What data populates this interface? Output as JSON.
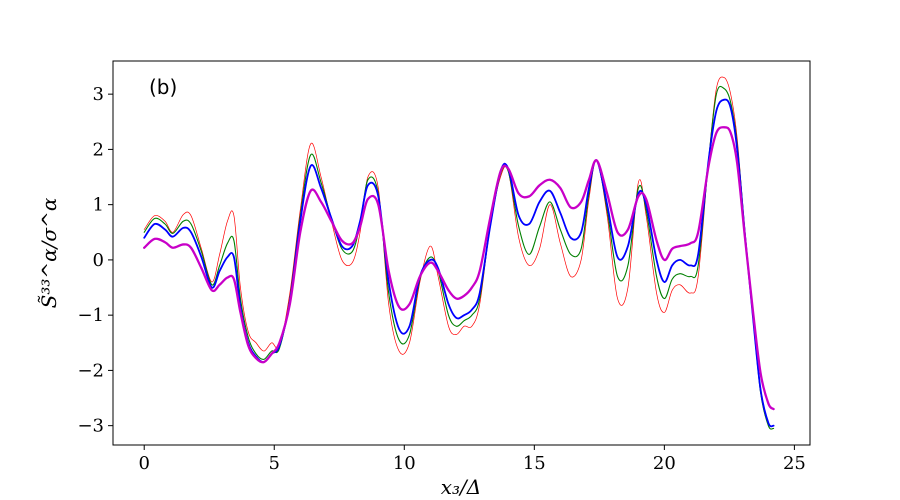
{
  "panel_label": "(b)",
  "chart_data": {
    "type": "line",
    "title": "",
    "xlabel": "x₃/Δ",
    "ylabel": "S̃³³^α/σ^α",
    "xlim": [
      -1.2,
      25.6
    ],
    "ylim": [
      -3.35,
      3.6
    ],
    "xticks": [
      0,
      5,
      10,
      15,
      20,
      25
    ],
    "yticks": [
      -3,
      -2,
      -1,
      0,
      1,
      2,
      3
    ],
    "xtick_labels": [
      "0",
      "5",
      "10",
      "15",
      "20",
      "25"
    ],
    "ytick_labels": [
      "−3",
      "−2",
      "−1",
      "0",
      "1",
      "2",
      "3"
    ],
    "grid": false,
    "series": [
      {
        "color": "#ff0000",
        "width": 0.7,
        "x": [
          0,
          0.4,
          0.8,
          1.1,
          1.5,
          1.8,
          2.2,
          2.6,
          2.9,
          3.2,
          3.45,
          3.7,
          4.0,
          4.3,
          4.6,
          4.9,
          5.2,
          5.6,
          6.0,
          6.4,
          6.8,
          7.2,
          7.6,
          8.0,
          8.3,
          8.6,
          9.0,
          9.4,
          9.8,
          10.2,
          10.6,
          11.0,
          11.3,
          11.7,
          12.0,
          12.3,
          12.6,
          12.9,
          13.3,
          13.7,
          14.0,
          14.4,
          14.8,
          15.2,
          15.6,
          16.0,
          16.4,
          16.8,
          17.1,
          17.4,
          17.8,
          18.2,
          18.6,
          19.0,
          19.3,
          19.7,
          20.0,
          20.3,
          20.6,
          21.0,
          21.3,
          21.7,
          22.0,
          22.3,
          22.55,
          22.8,
          23.1,
          23.4,
          23.7,
          24.0,
          24.2
        ],
        "y": [
          0.55,
          0.8,
          0.7,
          0.5,
          0.82,
          0.8,
          0.2,
          -0.4,
          0.1,
          0.7,
          0.8,
          -0.5,
          -1.3,
          -1.5,
          -1.65,
          -1.5,
          -1.55,
          -0.6,
          0.9,
          2.1,
          1.5,
          0.7,
          0.0,
          -0.05,
          0.5,
          1.5,
          1.3,
          -0.8,
          -1.65,
          -1.5,
          -0.4,
          0.25,
          -0.3,
          -1.2,
          -1.35,
          -1.2,
          -1.2,
          -0.8,
          0.6,
          1.5,
          1.6,
          0.4,
          -0.1,
          0.2,
          1.0,
          0.3,
          -0.3,
          0.0,
          1.1,
          1.8,
          0.8,
          -0.7,
          -0.5,
          1.4,
          0.8,
          -0.6,
          -0.95,
          -0.55,
          -0.45,
          -0.6,
          -0.3,
          1.8,
          3.1,
          3.3,
          3.0,
          2.2,
          0.5,
          -1.0,
          -2.4,
          -3.0,
          -3.05
        ]
      },
      {
        "color": "#008000",
        "width": 1.1,
        "x": [
          0,
          0.4,
          0.8,
          1.1,
          1.5,
          1.8,
          2.2,
          2.6,
          2.9,
          3.2,
          3.45,
          3.7,
          4.0,
          4.3,
          4.6,
          4.9,
          5.2,
          5.6,
          6.0,
          6.4,
          6.8,
          7.2,
          7.6,
          8.0,
          8.3,
          8.6,
          9.0,
          9.4,
          9.8,
          10.2,
          10.6,
          11.0,
          11.3,
          11.7,
          12.0,
          12.3,
          12.6,
          12.9,
          13.3,
          13.7,
          14.0,
          14.4,
          14.8,
          15.2,
          15.6,
          16.0,
          16.4,
          16.8,
          17.1,
          17.4,
          17.8,
          18.2,
          18.6,
          19.0,
          19.3,
          19.7,
          20.0,
          20.3,
          20.6,
          21.0,
          21.3,
          21.7,
          22.0,
          22.3,
          22.55,
          22.8,
          23.1,
          23.4,
          23.7,
          24.0,
          24.2
        ],
        "y": [
          0.5,
          0.75,
          0.65,
          0.48,
          0.7,
          0.65,
          0.15,
          -0.45,
          -0.1,
          0.3,
          0.35,
          -0.7,
          -1.4,
          -1.7,
          -1.8,
          -1.65,
          -1.6,
          -0.7,
          0.8,
          1.9,
          1.4,
          0.75,
          0.2,
          0.15,
          0.65,
          1.45,
          1.2,
          -0.6,
          -1.45,
          -1.35,
          -0.35,
          0.05,
          -0.2,
          -1.0,
          -1.2,
          -1.1,
          -1.0,
          -0.7,
          0.6,
          1.55,
          1.6,
          0.6,
          0.1,
          0.6,
          1.05,
          0.55,
          0.1,
          0.2,
          1.2,
          1.8,
          0.9,
          -0.3,
          -0.1,
          1.3,
          0.9,
          -0.3,
          -0.7,
          -0.35,
          -0.25,
          -0.3,
          -0.1,
          1.8,
          3.0,
          3.1,
          2.85,
          2.1,
          0.5,
          -1.0,
          -2.4,
          -3.0,
          -3.05
        ]
      },
      {
        "color": "#0000ff",
        "width": 1.8,
        "x": [
          0,
          0.4,
          0.8,
          1.1,
          1.5,
          1.8,
          2.2,
          2.6,
          2.9,
          3.2,
          3.45,
          3.7,
          4.0,
          4.3,
          4.6,
          4.9,
          5.2,
          5.6,
          6.0,
          6.4,
          6.8,
          7.2,
          7.6,
          8.0,
          8.3,
          8.6,
          9.0,
          9.4,
          9.8,
          10.2,
          10.6,
          11.0,
          11.3,
          11.7,
          12.0,
          12.3,
          12.6,
          12.9,
          13.3,
          13.7,
          14.0,
          14.4,
          14.8,
          15.2,
          15.6,
          16.0,
          16.4,
          16.8,
          17.1,
          17.4,
          17.8,
          18.2,
          18.6,
          19.0,
          19.3,
          19.7,
          20.0,
          20.3,
          20.6,
          21.0,
          21.3,
          21.7,
          22.0,
          22.3,
          22.55,
          22.8,
          23.1,
          23.4,
          23.7,
          24.0,
          24.2
        ],
        "y": [
          0.4,
          0.65,
          0.55,
          0.42,
          0.58,
          0.5,
          0.05,
          -0.5,
          -0.2,
          0.05,
          0.05,
          -0.85,
          -1.5,
          -1.75,
          -1.85,
          -1.7,
          -1.55,
          -0.75,
          0.7,
          1.7,
          1.3,
          0.75,
          0.25,
          0.25,
          0.7,
          1.35,
          1.15,
          -0.4,
          -1.25,
          -1.2,
          -0.3,
          0.0,
          -0.15,
          -0.8,
          -1.05,
          -1.0,
          -0.9,
          -0.6,
          0.6,
          1.6,
          1.65,
          0.8,
          0.65,
          1.05,
          1.25,
          0.85,
          0.4,
          0.5,
          1.3,
          1.8,
          1.0,
          0.05,
          0.25,
          1.2,
          1.0,
          0.0,
          -0.4,
          -0.1,
          0.0,
          -0.1,
          0.1,
          1.8,
          2.7,
          2.9,
          2.75,
          2.0,
          0.45,
          -1.0,
          -2.35,
          -2.95,
          -3.0
        ]
      },
      {
        "color": "#c800c8",
        "width": 2.3,
        "x": [
          0,
          0.4,
          0.8,
          1.1,
          1.5,
          1.8,
          2.2,
          2.6,
          2.9,
          3.2,
          3.45,
          3.7,
          4.0,
          4.3,
          4.6,
          4.9,
          5.2,
          5.6,
          6.0,
          6.4,
          6.8,
          7.2,
          7.6,
          8.0,
          8.3,
          8.6,
          9.0,
          9.4,
          9.8,
          10.2,
          10.6,
          11.0,
          11.3,
          11.7,
          12.0,
          12.3,
          12.6,
          12.9,
          13.3,
          13.7,
          14.0,
          14.4,
          14.8,
          15.2,
          15.6,
          16.0,
          16.4,
          16.8,
          17.1,
          17.4,
          17.8,
          18.2,
          18.6,
          19.0,
          19.3,
          19.7,
          20.0,
          20.3,
          20.6,
          21.0,
          21.3,
          21.7,
          22.0,
          22.3,
          22.55,
          22.8,
          23.1,
          23.4,
          23.7,
          24.0,
          24.2
        ],
        "y": [
          0.22,
          0.38,
          0.32,
          0.22,
          0.28,
          0.22,
          -0.15,
          -0.55,
          -0.45,
          -0.32,
          -0.35,
          -0.95,
          -1.55,
          -1.78,
          -1.85,
          -1.7,
          -1.5,
          -0.8,
          0.5,
          1.25,
          1.05,
          0.7,
          0.35,
          0.3,
          0.6,
          1.1,
          1.0,
          -0.2,
          -0.85,
          -0.8,
          -0.3,
          -0.05,
          -0.2,
          -0.55,
          -0.7,
          -0.65,
          -0.5,
          -0.2,
          0.75,
          1.6,
          1.65,
          1.2,
          1.15,
          1.35,
          1.45,
          1.3,
          0.95,
          1.05,
          1.45,
          1.8,
          1.2,
          0.5,
          0.55,
          1.15,
          1.1,
          0.35,
          0.0,
          0.2,
          0.25,
          0.3,
          0.5,
          1.7,
          2.3,
          2.4,
          2.3,
          1.75,
          0.4,
          -0.9,
          -2.05,
          -2.6,
          -2.7
        ]
      }
    ]
  }
}
